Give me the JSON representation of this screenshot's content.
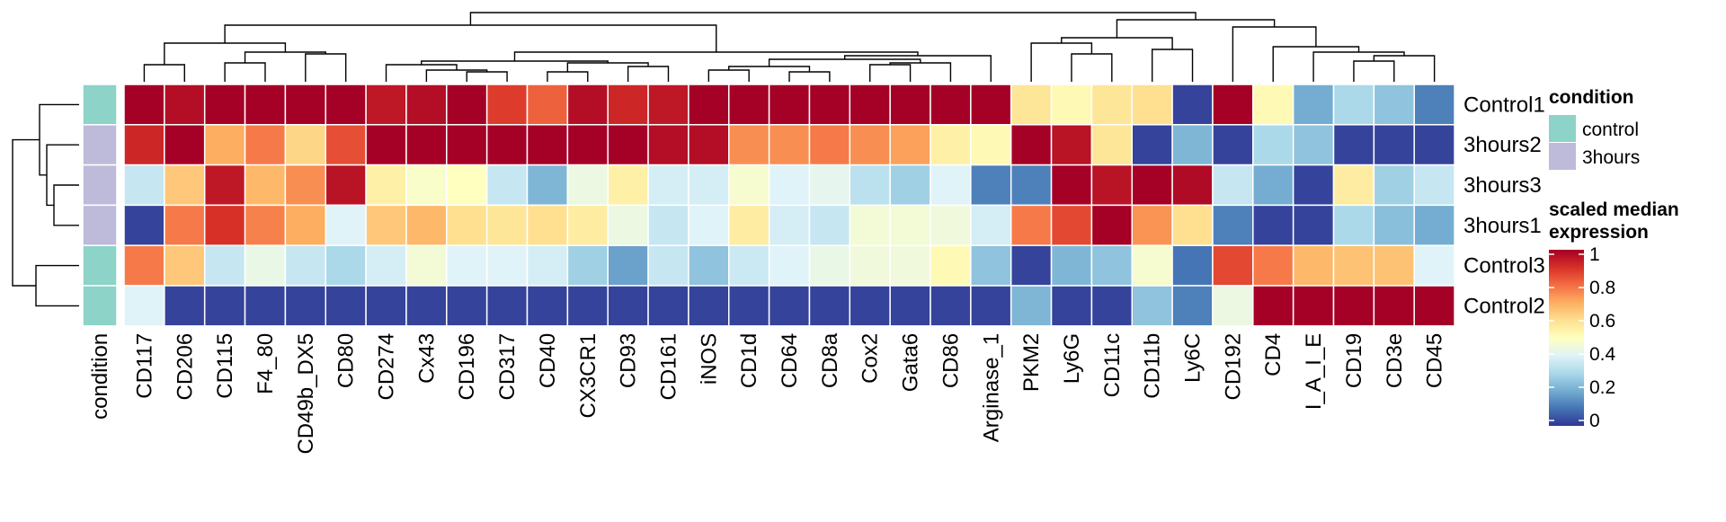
{
  "chart_data": {
    "type": "heatmap",
    "columns": [
      "CD117",
      "CD206",
      "CD115",
      "F4_80",
      "CD49b_DX5",
      "CD80",
      "CD274",
      "Cx43",
      "CD196",
      "CD317",
      "CD40",
      "CX3CR1",
      "CD93",
      "CD161",
      "iNOS",
      "CD1d",
      "CD64",
      "CD8a",
      "Cox2",
      "Gata6",
      "CD86",
      "Arginase_1",
      "PKM2",
      "Ly6G",
      "CD11c",
      "CD11b",
      "Ly6C",
      "CD192",
      "CD4",
      "I_A_I_E",
      "CD19",
      "CD3e",
      "CD45"
    ],
    "rows": [
      "Control1",
      "3hours2",
      "3hours3",
      "3hours1",
      "Control3",
      "Control2"
    ],
    "values": [
      [
        1.0,
        0.97,
        1.0,
        1.0,
        1.0,
        1.0,
        0.95,
        0.97,
        1.0,
        0.88,
        0.82,
        0.97,
        0.92,
        0.95,
        1.0,
        1.0,
        1.0,
        1.0,
        1.0,
        1.0,
        1.0,
        1.0,
        0.58,
        0.52,
        0.58,
        0.6,
        0.02,
        1.0,
        0.52,
        0.2,
        0.3,
        0.25,
        0.12
      ],
      [
        0.92,
        1.0,
        0.7,
        0.78,
        0.62,
        0.85,
        1.0,
        1.0,
        1.0,
        1.0,
        1.0,
        1.0,
        1.0,
        0.97,
        0.97,
        0.75,
        0.75,
        0.78,
        0.75,
        0.72,
        0.55,
        0.52,
        1.0,
        0.96,
        0.58,
        0.02,
        0.22,
        0.02,
        0.3,
        0.25,
        0.02,
        0.02,
        0.02
      ],
      [
        0.35,
        0.65,
        0.95,
        0.68,
        0.75,
        0.96,
        0.55,
        0.48,
        0.5,
        0.35,
        0.22,
        0.44,
        0.55,
        0.38,
        0.38,
        0.47,
        0.4,
        0.42,
        0.33,
        0.28,
        0.4,
        0.12,
        0.12,
        1.0,
        0.96,
        1.0,
        0.98,
        0.35,
        0.2,
        0.02,
        0.56,
        0.28,
        0.35
      ],
      [
        0.02,
        0.78,
        0.9,
        0.77,
        0.7,
        0.4,
        0.65,
        0.68,
        0.6,
        0.58,
        0.6,
        0.56,
        0.44,
        0.35,
        0.4,
        0.56,
        0.38,
        0.35,
        0.46,
        0.46,
        0.45,
        0.38,
        0.78,
        0.86,
        1.0,
        0.74,
        0.6,
        0.12,
        0.02,
        0.02,
        0.3,
        0.24,
        0.2
      ],
      [
        0.78,
        0.65,
        0.35,
        0.43,
        0.35,
        0.3,
        0.38,
        0.46,
        0.4,
        0.4,
        0.38,
        0.28,
        0.18,
        0.35,
        0.25,
        0.36,
        0.4,
        0.43,
        0.45,
        0.45,
        0.52,
        0.25,
        0.02,
        0.22,
        0.25,
        0.47,
        0.1,
        0.86,
        0.78,
        0.68,
        0.66,
        0.66,
        0.4
      ],
      [
        0.4,
        0.02,
        0.02,
        0.02,
        0.02,
        0.02,
        0.02,
        0.02,
        0.02,
        0.02,
        0.02,
        0.02,
        0.02,
        0.02,
        0.02,
        0.02,
        0.02,
        0.02,
        0.02,
        0.02,
        0.02,
        0.02,
        0.22,
        0.02,
        0.02,
        0.25,
        0.12,
        0.44,
        1.0,
        1.0,
        1.0,
        1.0,
        1.0
      ]
    ],
    "row_annotation": {
      "title": "condition",
      "values": [
        "control",
        "3hours",
        "3hours",
        "3hours",
        "control",
        "control"
      ]
    },
    "legend_condition": {
      "title": "condition",
      "items": [
        {
          "label": "control",
          "color": "#8dd3c7"
        },
        {
          "label": "3hours",
          "color": "#bebada"
        }
      ]
    },
    "legend_scale": {
      "title_line1": "scaled median",
      "title_line2": "expression",
      "ticks": [
        "0",
        "0.2",
        "0.4",
        "0.6",
        "0.8",
        "1"
      ],
      "range": [
        0,
        1
      ]
    },
    "colormap": [
      "#313695",
      "#4575b4",
      "#74add1",
      "#abd9e9",
      "#e0f3f8",
      "#ffffbf",
      "#fee090",
      "#fdae61",
      "#f46d43",
      "#d73027",
      "#a50026"
    ],
    "row_dendrogram": true,
    "col_dendrogram": true
  }
}
